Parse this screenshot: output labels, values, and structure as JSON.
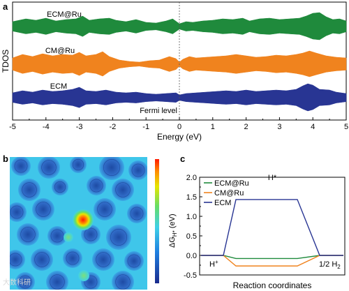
{
  "panels": {
    "a": "a",
    "b": "b",
    "c": "c"
  },
  "watermark": "大数科研",
  "chart_data": [
    {
      "panel": "a",
      "type": "area",
      "xlabel": "Energy (eV)",
      "ylabel": "TDOS",
      "xlim": [
        -5,
        5
      ],
      "xticks": [
        "-5",
        "-4",
        "-3",
        "-2",
        "-1",
        "0",
        "1",
        "2",
        "3",
        "4",
        "5"
      ],
      "fermi_label": "Fermi level",
      "fermi_x": 0,
      "series": [
        {
          "name": "ECM@Ru",
          "color": "#1f8a3c",
          "envelope": [
            [
              -5,
              0.35
            ],
            [
              -4.6,
              0.55
            ],
            [
              -4.3,
              0.45
            ],
            [
              -4,
              0.6
            ],
            [
              -3.7,
              0.4
            ],
            [
              -3.4,
              0.5
            ],
            [
              -3.1,
              0.55
            ],
            [
              -2.9,
              0.75
            ],
            [
              -2.7,
              0.45
            ],
            [
              -2.4,
              0.55
            ],
            [
              -2.1,
              0.6
            ],
            [
              -1.9,
              0.45
            ],
            [
              -1.6,
              0.35
            ],
            [
              -1.3,
              0.5
            ],
            [
              -1.0,
              0.3
            ],
            [
              -0.7,
              0.25
            ],
            [
              -0.4,
              0.4
            ],
            [
              -0.2,
              0.55
            ],
            [
              0,
              0.2
            ],
            [
              0.2,
              0.35
            ],
            [
              0.4,
              0.3
            ],
            [
              0.7,
              0.4
            ],
            [
              1.0,
              0.45
            ],
            [
              1.3,
              0.55
            ],
            [
              1.6,
              0.5
            ],
            [
              1.9,
              0.6
            ],
            [
              2.1,
              0.4
            ],
            [
              2.4,
              0.55
            ],
            [
              2.7,
              0.6
            ],
            [
              3.0,
              0.5
            ],
            [
              3.3,
              0.55
            ],
            [
              3.6,
              0.6
            ],
            [
              3.8,
              0.75
            ],
            [
              4.0,
              0.95
            ],
            [
              4.2,
              1.0
            ],
            [
              4.4,
              0.7
            ],
            [
              4.6,
              0.5
            ],
            [
              4.8,
              0.55
            ],
            [
              5,
              0.4
            ]
          ]
        },
        {
          "name": "CM@Ru",
          "color": "#f0831e",
          "envelope": [
            [
              -5,
              0.45
            ],
            [
              -4.7,
              0.7
            ],
            [
              -4.4,
              0.55
            ],
            [
              -4.1,
              0.75
            ],
            [
              -3.8,
              0.6
            ],
            [
              -3.5,
              0.7
            ],
            [
              -3.2,
              0.65
            ],
            [
              -3.0,
              0.85
            ],
            [
              -2.8,
              0.6
            ],
            [
              -2.5,
              0.7
            ],
            [
              -2.3,
              0.9
            ],
            [
              -2.1,
              0.55
            ],
            [
              -1.8,
              0.3
            ],
            [
              -1.5,
              0.2
            ],
            [
              -1.2,
              0.15
            ],
            [
              -0.9,
              0.25
            ],
            [
              -0.6,
              0.3
            ],
            [
              -0.3,
              0.55
            ],
            [
              -0.1,
              0.4
            ],
            [
              0,
              0.15
            ],
            [
              0.1,
              0.35
            ],
            [
              0.3,
              0.55
            ],
            [
              0.5,
              0.45
            ],
            [
              0.8,
              0.5
            ],
            [
              1.1,
              0.55
            ],
            [
              1.4,
              0.6
            ],
            [
              1.7,
              0.7
            ],
            [
              2.0,
              0.6
            ],
            [
              2.3,
              0.5
            ],
            [
              2.6,
              0.55
            ],
            [
              2.9,
              0.65
            ],
            [
              3.2,
              0.6
            ],
            [
              3.5,
              0.7
            ],
            [
              3.7,
              0.8
            ],
            [
              3.9,
              0.95
            ],
            [
              4.1,
              0.8
            ],
            [
              4.4,
              0.6
            ],
            [
              4.7,
              0.5
            ],
            [
              5,
              0.45
            ]
          ]
        },
        {
          "name": "ECM",
          "color": "#283593",
          "envelope": [
            [
              -5,
              0.35
            ],
            [
              -4.7,
              0.5
            ],
            [
              -4.4,
              0.4
            ],
            [
              -4.1,
              0.55
            ],
            [
              -3.8,
              0.45
            ],
            [
              -3.5,
              0.5
            ],
            [
              -3.2,
              0.6
            ],
            [
              -3.0,
              0.75
            ],
            [
              -2.8,
              0.5
            ],
            [
              -2.5,
              0.45
            ],
            [
              -2.2,
              0.55
            ],
            [
              -1.9,
              0.4
            ],
            [
              -1.6,
              0.35
            ],
            [
              -1.3,
              0.4
            ],
            [
              -1.0,
              0.3
            ],
            [
              -0.7,
              0.25
            ],
            [
              -0.4,
              0.3
            ],
            [
              -0.1,
              0.35
            ],
            [
              0,
              0.2
            ],
            [
              0.2,
              0.3
            ],
            [
              0.5,
              0.35
            ],
            [
              0.8,
              0.4
            ],
            [
              1.1,
              0.45
            ],
            [
              1.4,
              0.5
            ],
            [
              1.7,
              0.45
            ],
            [
              2.0,
              0.55
            ],
            [
              2.3,
              0.45
            ],
            [
              2.6,
              0.5
            ],
            [
              2.9,
              0.55
            ],
            [
              3.2,
              0.5
            ],
            [
              3.5,
              0.6
            ],
            [
              3.7,
              0.85
            ],
            [
              3.85,
              1.0
            ],
            [
              4.0,
              0.9
            ],
            [
              4.2,
              0.6
            ],
            [
              4.5,
              0.55
            ],
            [
              4.7,
              0.4
            ],
            [
              5,
              0.3
            ]
          ]
        }
      ]
    },
    {
      "panel": "b",
      "type": "heatmap",
      "colorbar_ticks": []
    },
    {
      "panel": "c",
      "type": "line",
      "xlabel": "Reaction coordinates",
      "ylabel_main": "ΔG",
      "ylabel_sub": "H*",
      "ylabel_unit": "(eV)",
      "ylim": [
        -0.5,
        2.0
      ],
      "yticks": [
        "-0.5",
        "0.0",
        "0.5",
        "1.0",
        "1.5",
        "2.0"
      ],
      "states": [
        "H+",
        "H*",
        "1/2 H2"
      ],
      "state_labels": {
        "hplus_base": "H",
        "hplus_sup": "+",
        "hstar": "H*",
        "h2_base": "1/2 H",
        "h2_sub": "2"
      },
      "series": [
        {
          "name": "ECM@Ru",
          "color": "#1f8a3c",
          "values": [
            0,
            -0.08,
            0
          ]
        },
        {
          "name": "CM@Ru",
          "color": "#f0831e",
          "values": [
            0,
            -0.27,
            0
          ]
        },
        {
          "name": "ECM",
          "color": "#283593",
          "values": [
            0,
            1.43,
            0
          ]
        }
      ],
      "legend_position": "top-left"
    }
  ]
}
